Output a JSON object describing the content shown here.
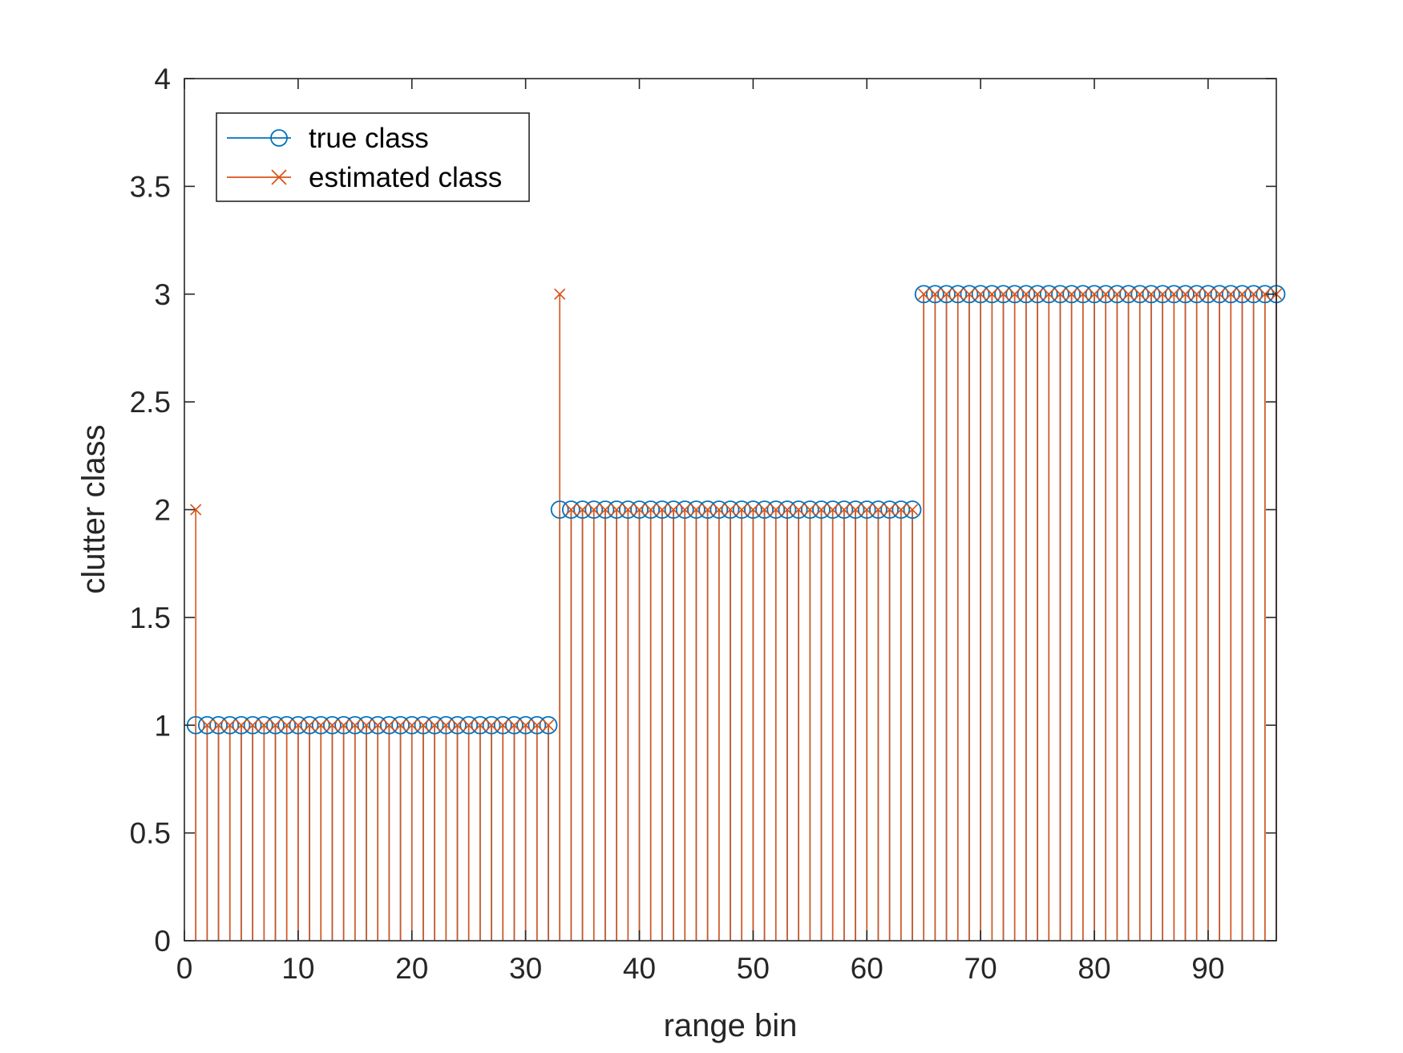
{
  "chart_data": {
    "type": "stem",
    "xlabel": "range bin",
    "ylabel": "clutter class",
    "xlim": [
      0,
      96
    ],
    "ylim": [
      0,
      4
    ],
    "xticks": [
      0,
      10,
      20,
      30,
      40,
      50,
      60,
      70,
      80,
      90
    ],
    "yticks": [
      0,
      0.5,
      1,
      1.5,
      2,
      2.5,
      3,
      3.5,
      4
    ],
    "ytick_labels": [
      "0",
      "0.5",
      "1",
      "1.5",
      "2",
      "2.5",
      "3",
      "3.5",
      "4"
    ],
    "grid": false,
    "legend": {
      "position": "top-left"
    },
    "x": [
      1,
      2,
      3,
      4,
      5,
      6,
      7,
      8,
      9,
      10,
      11,
      12,
      13,
      14,
      15,
      16,
      17,
      18,
      19,
      20,
      21,
      22,
      23,
      24,
      25,
      26,
      27,
      28,
      29,
      30,
      31,
      32,
      33,
      34,
      35,
      36,
      37,
      38,
      39,
      40,
      41,
      42,
      43,
      44,
      45,
      46,
      47,
      48,
      49,
      50,
      51,
      52,
      53,
      54,
      55,
      56,
      57,
      58,
      59,
      60,
      61,
      62,
      63,
      64,
      65,
      66,
      67,
      68,
      69,
      70,
      71,
      72,
      73,
      74,
      75,
      76,
      77,
      78,
      79,
      80,
      81,
      82,
      83,
      84,
      85,
      86,
      87,
      88,
      89,
      90,
      91,
      92,
      93,
      94,
      95,
      96
    ],
    "series": [
      {
        "name": "true class",
        "color": "#0072BD",
        "marker": "circle",
        "values": [
          1,
          1,
          1,
          1,
          1,
          1,
          1,
          1,
          1,
          1,
          1,
          1,
          1,
          1,
          1,
          1,
          1,
          1,
          1,
          1,
          1,
          1,
          1,
          1,
          1,
          1,
          1,
          1,
          1,
          1,
          1,
          1,
          2,
          2,
          2,
          2,
          2,
          2,
          2,
          2,
          2,
          2,
          2,
          2,
          2,
          2,
          2,
          2,
          2,
          2,
          2,
          2,
          2,
          2,
          2,
          2,
          2,
          2,
          2,
          2,
          2,
          2,
          2,
          2,
          3,
          3,
          3,
          3,
          3,
          3,
          3,
          3,
          3,
          3,
          3,
          3,
          3,
          3,
          3,
          3,
          3,
          3,
          3,
          3,
          3,
          3,
          3,
          3,
          3,
          3,
          3,
          3,
          3,
          3,
          3,
          3
        ]
      },
      {
        "name": "estimated class",
        "color": "#D95319",
        "marker": "x",
        "values": [
          2,
          1,
          1,
          1,
          1,
          1,
          1,
          1,
          1,
          1,
          1,
          1,
          1,
          1,
          1,
          1,
          1,
          1,
          1,
          1,
          1,
          1,
          1,
          1,
          1,
          1,
          1,
          1,
          1,
          1,
          1,
          1,
          3,
          2,
          2,
          2,
          2,
          2,
          2,
          2,
          2,
          2,
          2,
          2,
          2,
          2,
          2,
          2,
          2,
          2,
          2,
          2,
          2,
          2,
          2,
          2,
          2,
          2,
          2,
          2,
          2,
          2,
          2,
          2,
          3,
          3,
          3,
          3,
          3,
          3,
          3,
          3,
          3,
          3,
          3,
          3,
          3,
          3,
          3,
          3,
          3,
          3,
          3,
          3,
          3,
          3,
          3,
          3,
          3,
          3,
          3,
          3,
          3,
          3,
          3,
          3
        ]
      }
    ]
  }
}
